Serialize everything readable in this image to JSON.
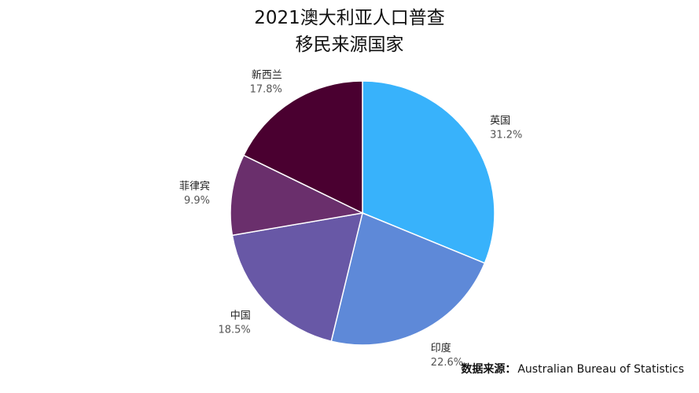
{
  "chart_data": {
    "type": "pie",
    "title_lines": [
      "2021澳大利亚人口普查",
      "移民来源国家"
    ],
    "slices": [
      {
        "label": "英国",
        "value": 31.2,
        "display": "31.2%",
        "color": "#38b2fb"
      },
      {
        "label": "印度",
        "value": 22.6,
        "display": "22.6%",
        "color": "#5e89d8"
      },
      {
        "label": "中国",
        "value": 18.5,
        "display": "18.5%",
        "color": "#6858a6"
      },
      {
        "label": "菲律宾",
        "value": 9.9,
        "display": "9.9%",
        "color": "#6a2f6c"
      },
      {
        "label": "新西兰",
        "value": 17.8,
        "display": "17.8%",
        "color": "#4a0030"
      }
    ],
    "start_angle_deg": 0,
    "direction": "clockwise",
    "legend": "none",
    "labels_position": "outside"
  },
  "source": {
    "label": "数据来源：",
    "value": "Australian Bureau of Statistics"
  }
}
